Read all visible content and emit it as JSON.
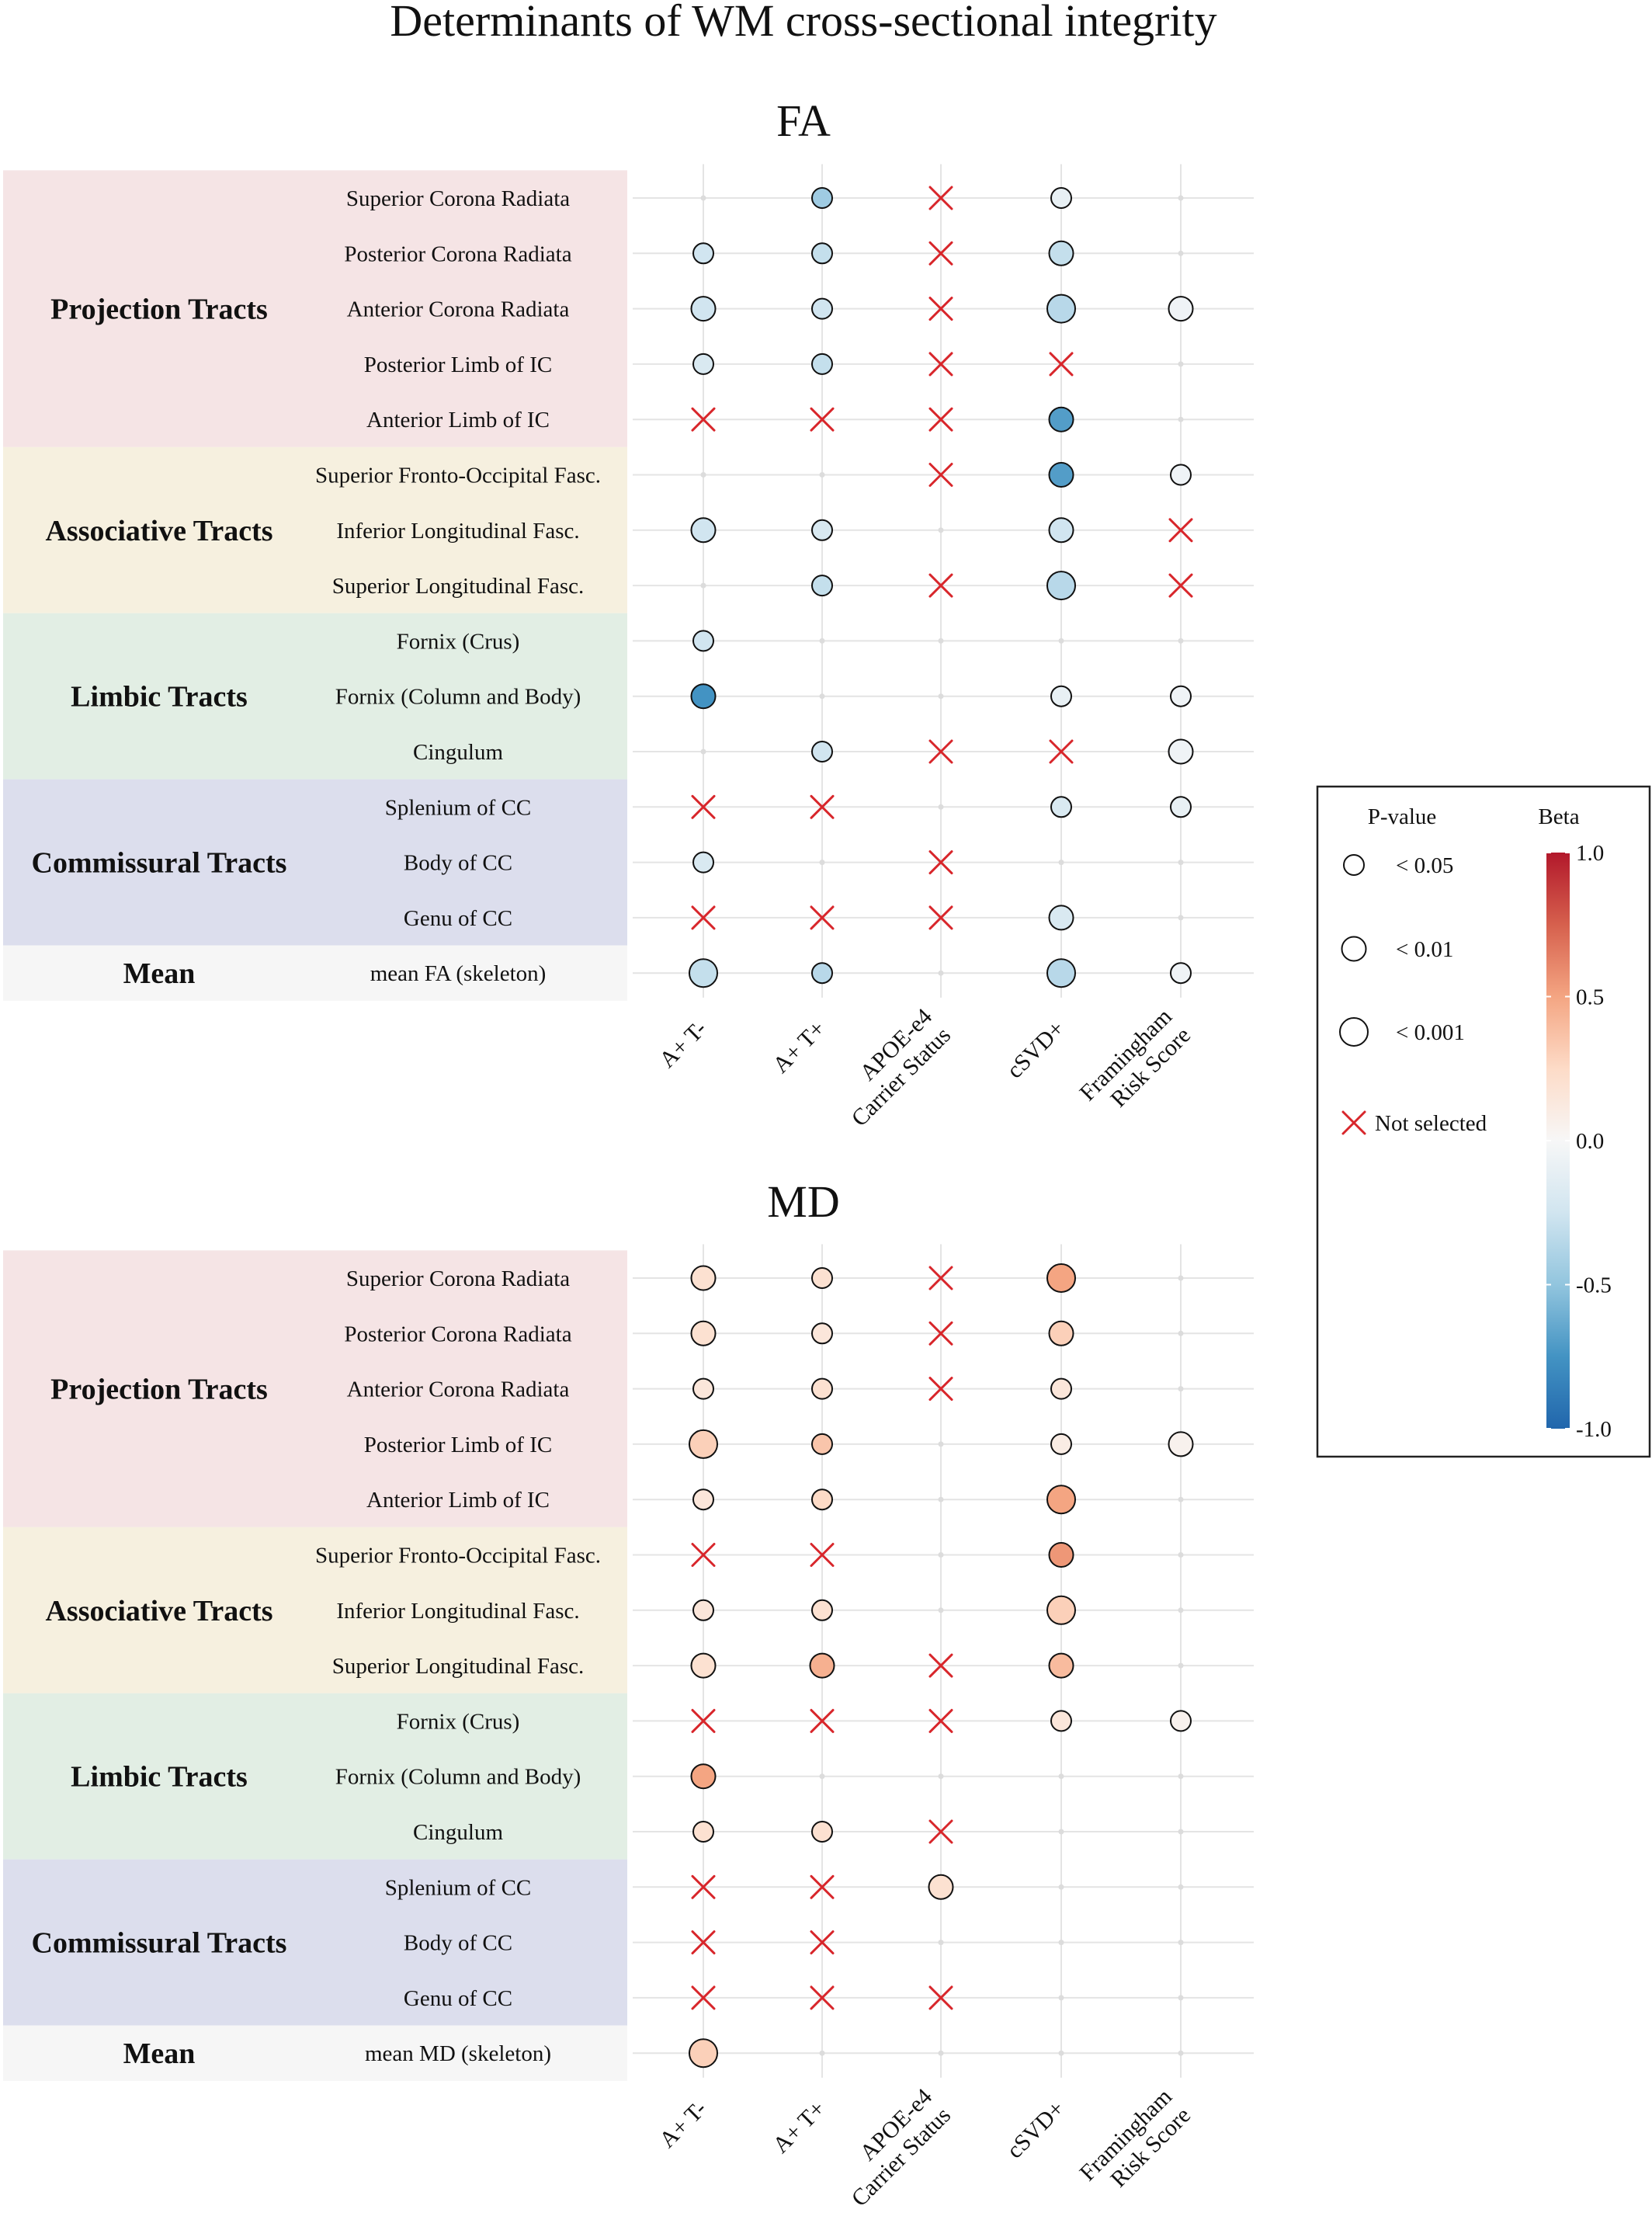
{
  "title": "Determinants of WM cross-sectional integrity",
  "colors": {
    "projection": "#f5e4e5",
    "associative": "#f6f0df",
    "limbic": "#e2eee4",
    "commissural": "#dcdeed",
    "mean": "#f6f6f6",
    "cross": "#d8262b",
    "grid": "#e4e4e4",
    "beta_scale": [
      "#2166ac",
      "#4393c3",
      "#92c5de",
      "#d1e5f0",
      "#f7f7f7",
      "#fddbc7",
      "#f4a582",
      "#d6604d",
      "#b2182b"
    ]
  },
  "legend": {
    "pvalue_title": "P-value",
    "beta_title": "Beta",
    "pvalues": [
      {
        "label": "< 0.05",
        "level": 1
      },
      {
        "label": "< 0.01",
        "level": 2
      },
      {
        "label": "< 0.001",
        "level": 3
      }
    ],
    "not_selected": "Not selected",
    "beta_ticks": [
      "1.0",
      "0.5",
      "0.0",
      "-0.5",
      "-1.0"
    ],
    "beta_tick_values": [
      1.0,
      0.5,
      0.0,
      -0.5,
      -1.0
    ],
    "beta_range": [
      -1.0,
      1.0
    ]
  },
  "chart_data": [
    {
      "type": "dot-matrix",
      "title": "FA",
      "columns": [
        "A+ T-",
        "A+ T+",
        "APOE-e4 Carrier Status",
        "cSVD+",
        "Framingham Risk Score"
      ],
      "column_label_lines": [
        [
          "A+ T-"
        ],
        [
          "A+ T+"
        ],
        [
          "APOE-e4",
          "Carrier Status"
        ],
        [
          "cSVD+"
        ],
        [
          "Framingham",
          "Risk Score"
        ]
      ],
      "groups": [
        {
          "name": "Projection Tracts",
          "color": "projection",
          "rows": [
            0,
            4
          ]
        },
        {
          "name": "Associative Tracts",
          "color": "associative",
          "rows": [
            5,
            7
          ]
        },
        {
          "name": "Limbic Tracts",
          "color": "limbic",
          "rows": [
            8,
            10
          ]
        },
        {
          "name": "Commissural Tracts",
          "color": "commissural",
          "rows": [
            11,
            13
          ]
        },
        {
          "name": "Mean",
          "color": "mean",
          "rows": [
            14,
            14
          ]
        }
      ],
      "rows": [
        {
          "tract": "Superior Corona Radiata",
          "cells": [
            {
              "s": "none"
            },
            {
              "s": "sig",
              "p": 1,
              "beta": -0.45
            },
            {
              "s": "x"
            },
            {
              "s": "sig",
              "p": 1,
              "beta": -0.1
            },
            {
              "s": "none"
            }
          ]
        },
        {
          "tract": "Posterior Corona Radiata",
          "cells": [
            {
              "s": "sig",
              "p": 1,
              "beta": -0.25
            },
            {
              "s": "sig",
              "p": 1,
              "beta": -0.3
            },
            {
              "s": "x"
            },
            {
              "s": "sig",
              "p": 2,
              "beta": -0.3
            },
            {
              "s": "none"
            }
          ]
        },
        {
          "tract": "Anterior Corona Radiata",
          "cells": [
            {
              "s": "sig",
              "p": 2,
              "beta": -0.25
            },
            {
              "s": "sig",
              "p": 1,
              "beta": -0.25
            },
            {
              "s": "x"
            },
            {
              "s": "sig",
              "p": 3,
              "beta": -0.35
            },
            {
              "s": "sig",
              "p": 2,
              "beta": -0.05
            }
          ]
        },
        {
          "tract": "Posterior Limb of IC",
          "cells": [
            {
              "s": "sig",
              "p": 1,
              "beta": -0.2
            },
            {
              "s": "sig",
              "p": 1,
              "beta": -0.3
            },
            {
              "s": "x"
            },
            {
              "s": "x"
            },
            {
              "s": "none"
            }
          ]
        },
        {
          "tract": "Anterior Limb of IC",
          "cells": [
            {
              "s": "x"
            },
            {
              "s": "x"
            },
            {
              "s": "x"
            },
            {
              "s": "sig",
              "p": 2,
              "beta": -0.7
            },
            {
              "s": "none"
            }
          ]
        },
        {
          "tract": "Superior Fronto-Occipital Fasc.",
          "cells": [
            {
              "s": "none"
            },
            {
              "s": "none"
            },
            {
              "s": "x"
            },
            {
              "s": "sig",
              "p": 2,
              "beta": -0.7
            },
            {
              "s": "sig",
              "p": 1,
              "beta": -0.05
            }
          ]
        },
        {
          "tract": "Inferior Longitudinal Fasc.",
          "cells": [
            {
              "s": "sig",
              "p": 2,
              "beta": -0.25
            },
            {
              "s": "sig",
              "p": 1,
              "beta": -0.2
            },
            {
              "s": "none"
            },
            {
              "s": "sig",
              "p": 2,
              "beta": -0.25
            },
            {
              "s": "x"
            }
          ]
        },
        {
          "tract": "Superior Longitudinal Fasc.",
          "cells": [
            {
              "s": "none"
            },
            {
              "s": "sig",
              "p": 1,
              "beta": -0.3
            },
            {
              "s": "x"
            },
            {
              "s": "sig",
              "p": 3,
              "beta": -0.35
            },
            {
              "s": "x"
            }
          ]
        },
        {
          "tract": "Fornix (Crus)",
          "cells": [
            {
              "s": "sig",
              "p": 1,
              "beta": -0.25
            },
            {
              "s": "none"
            },
            {
              "s": "none"
            },
            {
              "s": "none"
            },
            {
              "s": "none"
            }
          ]
        },
        {
          "tract": "Fornix (Column and Body)",
          "cells": [
            {
              "s": "sig",
              "p": 2,
              "beta": -0.75
            },
            {
              "s": "none"
            },
            {
              "s": "none"
            },
            {
              "s": "sig",
              "p": 1,
              "beta": -0.1
            },
            {
              "s": "sig",
              "p": 1,
              "beta": -0.05
            }
          ]
        },
        {
          "tract": "Cingulum",
          "cells": [
            {
              "s": "none"
            },
            {
              "s": "sig",
              "p": 1,
              "beta": -0.25
            },
            {
              "s": "x"
            },
            {
              "s": "x"
            },
            {
              "s": "sig",
              "p": 2,
              "beta": -0.05
            }
          ]
        },
        {
          "tract": "Splenium of CC",
          "cells": [
            {
              "s": "x"
            },
            {
              "s": "x"
            },
            {
              "s": "none"
            },
            {
              "s": "sig",
              "p": 1,
              "beta": -0.2
            },
            {
              "s": "sig",
              "p": 1,
              "beta": -0.1
            }
          ]
        },
        {
          "tract": "Body of CC",
          "cells": [
            {
              "s": "sig",
              "p": 1,
              "beta": -0.2
            },
            {
              "s": "none"
            },
            {
              "s": "x"
            },
            {
              "s": "none"
            },
            {
              "s": "none"
            }
          ]
        },
        {
          "tract": "Genu of CC",
          "cells": [
            {
              "s": "x"
            },
            {
              "s": "x"
            },
            {
              "s": "x"
            },
            {
              "s": "sig",
              "p": 2,
              "beta": -0.2
            },
            {
              "s": "none"
            }
          ]
        },
        {
          "tract": "mean FA (skeleton)",
          "cells": [
            {
              "s": "sig",
              "p": 3,
              "beta": -0.3
            },
            {
              "s": "sig",
              "p": 1,
              "beta": -0.35
            },
            {
              "s": "none"
            },
            {
              "s": "sig",
              "p": 3,
              "beta": -0.35
            },
            {
              "s": "sig",
              "p": 1,
              "beta": -0.05
            }
          ]
        }
      ]
    },
    {
      "type": "dot-matrix",
      "title": "MD",
      "columns": [
        "A+ T-",
        "A+ T+",
        "APOE-e4 Carrier Status",
        "cSVD+",
        "Framingham Risk Score"
      ],
      "column_label_lines": [
        [
          "A+ T-"
        ],
        [
          "A+ T+"
        ],
        [
          "APOE-e4",
          "Carrier Status"
        ],
        [
          "cSVD+"
        ],
        [
          "Framingham",
          "Risk Score"
        ]
      ],
      "groups": [
        {
          "name": "Projection Tracts",
          "color": "projection",
          "rows": [
            0,
            4
          ]
        },
        {
          "name": "Associative Tracts",
          "color": "associative",
          "rows": [
            5,
            7
          ]
        },
        {
          "name": "Limbic Tracts",
          "color": "limbic",
          "rows": [
            8,
            10
          ]
        },
        {
          "name": "Commissural Tracts",
          "color": "commissural",
          "rows": [
            11,
            13
          ]
        },
        {
          "name": "Mean",
          "color": "mean",
          "rows": [
            14,
            14
          ]
        }
      ],
      "rows": [
        {
          "tract": "Superior Corona Radiata",
          "cells": [
            {
              "s": "sig",
              "p": 2,
              "beta": 0.2
            },
            {
              "s": "sig",
              "p": 1,
              "beta": 0.2
            },
            {
              "s": "x"
            },
            {
              "s": "sig",
              "p": 3,
              "beta": 0.5
            },
            {
              "s": "none"
            }
          ]
        },
        {
          "tract": "Posterior Corona Radiata",
          "cells": [
            {
              "s": "sig",
              "p": 2,
              "beta": 0.2
            },
            {
              "s": "sig",
              "p": 1,
              "beta": 0.15
            },
            {
              "s": "x"
            },
            {
              "s": "sig",
              "p": 2,
              "beta": 0.3
            },
            {
              "s": "none"
            }
          ]
        },
        {
          "tract": "Anterior Corona Radiata",
          "cells": [
            {
              "s": "sig",
              "p": 1,
              "beta": 0.15
            },
            {
              "s": "sig",
              "p": 1,
              "beta": 0.2
            },
            {
              "s": "x"
            },
            {
              "s": "sig",
              "p": 1,
              "beta": 0.15
            },
            {
              "s": "none"
            }
          ]
        },
        {
          "tract": "Posterior Limb of IC",
          "cells": [
            {
              "s": "sig",
              "p": 3,
              "beta": 0.3
            },
            {
              "s": "sig",
              "p": 1,
              "beta": 0.35
            },
            {
              "s": "none"
            },
            {
              "s": "sig",
              "p": 1,
              "beta": 0.1
            },
            {
              "s": "sig",
              "p": 2,
              "beta": 0.05
            }
          ]
        },
        {
          "tract": "Anterior Limb of IC",
          "cells": [
            {
              "s": "sig",
              "p": 1,
              "beta": 0.15
            },
            {
              "s": "sig",
              "p": 1,
              "beta": 0.25
            },
            {
              "s": "none"
            },
            {
              "s": "sig",
              "p": 3,
              "beta": 0.5
            },
            {
              "s": "none"
            }
          ]
        },
        {
          "tract": "Superior Fronto-Occipital Fasc.",
          "cells": [
            {
              "s": "x"
            },
            {
              "s": "x"
            },
            {
              "s": "none"
            },
            {
              "s": "sig",
              "p": 2,
              "beta": 0.55
            },
            {
              "s": "none"
            }
          ]
        },
        {
          "tract": "Inferior Longitudinal Fasc.",
          "cells": [
            {
              "s": "sig",
              "p": 1,
              "beta": 0.15
            },
            {
              "s": "sig",
              "p": 1,
              "beta": 0.2
            },
            {
              "s": "none"
            },
            {
              "s": "sig",
              "p": 3,
              "beta": 0.3
            },
            {
              "s": "none"
            }
          ]
        },
        {
          "tract": "Superior Longitudinal Fasc.",
          "cells": [
            {
              "s": "sig",
              "p": 2,
              "beta": 0.2
            },
            {
              "s": "sig",
              "p": 2,
              "beta": 0.45
            },
            {
              "s": "x"
            },
            {
              "s": "sig",
              "p": 2,
              "beta": 0.4
            },
            {
              "s": "none"
            }
          ]
        },
        {
          "tract": "Fornix (Crus)",
          "cells": [
            {
              "s": "x"
            },
            {
              "s": "x"
            },
            {
              "s": "x"
            },
            {
              "s": "sig",
              "p": 1,
              "beta": 0.15
            },
            {
              "s": "sig",
              "p": 1,
              "beta": 0.05
            }
          ]
        },
        {
          "tract": "Fornix (Column and Body)",
          "cells": [
            {
              "s": "sig",
              "p": 2,
              "beta": 0.5
            },
            {
              "s": "none"
            },
            {
              "s": "none"
            },
            {
              "s": "none"
            },
            {
              "s": "none"
            }
          ]
        },
        {
          "tract": "Cingulum",
          "cells": [
            {
              "s": "sig",
              "p": 1,
              "beta": 0.2
            },
            {
              "s": "sig",
              "p": 1,
              "beta": 0.2
            },
            {
              "s": "x"
            },
            {
              "s": "none"
            },
            {
              "s": "none"
            }
          ]
        },
        {
          "tract": "Splenium of CC",
          "cells": [
            {
              "s": "x"
            },
            {
              "s": "x"
            },
            {
              "s": "sig",
              "p": 2,
              "beta": 0.2
            },
            {
              "s": "none"
            },
            {
              "s": "none"
            }
          ]
        },
        {
          "tract": "Body of CC",
          "cells": [
            {
              "s": "x"
            },
            {
              "s": "x"
            },
            {
              "s": "none"
            },
            {
              "s": "none"
            },
            {
              "s": "none"
            }
          ]
        },
        {
          "tract": "Genu of CC",
          "cells": [
            {
              "s": "x"
            },
            {
              "s": "x"
            },
            {
              "s": "x"
            },
            {
              "s": "none"
            },
            {
              "s": "none"
            }
          ]
        },
        {
          "tract": "mean MD (skeleton)",
          "cells": [
            {
              "s": "sig",
              "p": 3,
              "beta": 0.3
            },
            {
              "s": "none"
            },
            {
              "s": "none"
            },
            {
              "s": "none"
            },
            {
              "s": "none"
            }
          ]
        }
      ]
    }
  ]
}
